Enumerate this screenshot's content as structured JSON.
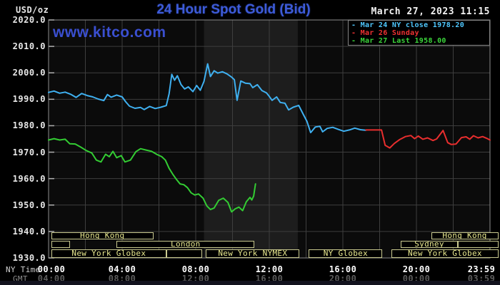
{
  "header": {
    "units_label": "USD/oz",
    "title": "24 Hour Spot Gold (Bid)",
    "datetime": "March 27, 2023 11:15",
    "watermark": "www.kitco.com"
  },
  "colors": {
    "title_blue": "#3d5bd8",
    "watermark_blue": "#3a4fd0",
    "grid": "#3e3e3e",
    "frame": "#8c8c8c",
    "plot_bg": "#0b0b0b",
    "band_bg": "#1d1d1d",
    "session_border": "#c9c98f",
    "session_text": "#e8e88f",
    "axis_text": "#e8e8e8",
    "ny_time_text": "#ffffff",
    "gmt_time_text": "#5c5c5c",
    "blue_line": "#3fb0f0",
    "red_line": "#e82e2e",
    "green_line": "#33cc33"
  },
  "legend": {
    "items": [
      {
        "label": "Mar 24 NY close 1978.20",
        "color": "#4fc8ff"
      },
      {
        "label": "Mar 26 Sunday",
        "color": "#f03232"
      },
      {
        "label": "Mar 27 Last 1958.00",
        "color": "#3bd63b"
      }
    ]
  },
  "axes": {
    "ny_label": "NY Time",
    "gmt_label": "GMT",
    "y_ticks": [
      "2020.0",
      "2010.0",
      "2000.0",
      "1990.0",
      "1980.0",
      "1970.0",
      "1960.0",
      "1950.0",
      "1940.0",
      "1930.0"
    ],
    "x_ny": [
      "00:00",
      "04:00",
      "08:00",
      "12:00",
      "16:00",
      "20:00",
      "23:59"
    ],
    "x_gmt": [
      "04:00",
      "08:00",
      "12:00",
      "16:00",
      "20:00",
      "00:00",
      "03:59"
    ]
  },
  "sessions": {
    "rows": [
      [
        {
          "label": "Hong Kong",
          "start": 0.15,
          "end": 5.7
        },
        {
          "label": "Hong Kong",
          "start": 20.8,
          "end": 24.45
        }
      ],
      [
        {
          "label": "",
          "start": 0.15,
          "end": 1.15
        },
        {
          "label": "London",
          "start": 3.7,
          "end": 11.2
        },
        {
          "label": "Sydney",
          "start": 19.15,
          "end": 22.25
        },
        {
          "label": "",
          "start": 22.25,
          "end": 24.45
        }
      ],
      [
        {
          "label": "New York Globex",
          "start": 0.15,
          "end": 6.4
        },
        {
          "label": "",
          "start": 6.4,
          "end": 8.35
        },
        {
          "label": "New York NYMEX",
          "start": 8.55,
          "end": 13.65
        },
        {
          "label": "NY Globex",
          "start": 14.15,
          "end": 18.15
        },
        {
          "label": "New York Globex",
          "start": 18.65,
          "end": 24.45
        }
      ]
    ]
  },
  "chart_data": {
    "type": "line",
    "title": "24 Hour Spot Gold (Bid)",
    "xlabel": "NY Time",
    "ylabel": "USD/oz",
    "x_range_hours": [
      0,
      24
    ],
    "ylim": [
      1930,
      2020
    ],
    "y_tick_step": 10,
    "x_tick_step_hours": 4,
    "grid": true,
    "legend_position": "top-right",
    "highlight_band_hours": [
      8.45,
      13.55
    ],
    "highlight_band_meaning": "New York NYMEX session",
    "series": [
      {
        "name": "Mar 24 NY close 1978.20",
        "color": "#3fb0f0",
        "points": [
          [
            0.0,
            1992.6
          ],
          [
            0.3,
            1993.1
          ],
          [
            0.6,
            1992.3
          ],
          [
            0.9,
            1992.7
          ],
          [
            1.2,
            1991.9
          ],
          [
            1.5,
            1990.7
          ],
          [
            1.8,
            1992.2
          ],
          [
            2.1,
            1991.4
          ],
          [
            2.4,
            1990.9
          ],
          [
            2.7,
            1990.1
          ],
          [
            3.0,
            1989.5
          ],
          [
            3.2,
            1991.8
          ],
          [
            3.4,
            1990.8
          ],
          [
            3.7,
            1991.6
          ],
          [
            4.0,
            1990.9
          ],
          [
            4.2,
            1989.0
          ],
          [
            4.4,
            1987.4
          ],
          [
            4.7,
            1986.6
          ],
          [
            5.0,
            1986.9
          ],
          [
            5.2,
            1986.1
          ],
          [
            5.5,
            1987.3
          ],
          [
            5.8,
            1986.5
          ],
          [
            6.1,
            1987.0
          ],
          [
            6.4,
            1987.6
          ],
          [
            6.55,
            1992.0
          ],
          [
            6.7,
            1999.4
          ],
          [
            6.85,
            1997.2
          ],
          [
            7.0,
            1998.9
          ],
          [
            7.2,
            1995.6
          ],
          [
            7.4,
            1993.9
          ],
          [
            7.6,
            1994.7
          ],
          [
            7.85,
            1992.9
          ],
          [
            8.05,
            1995.2
          ],
          [
            8.25,
            1993.4
          ],
          [
            8.45,
            1996.8
          ],
          [
            8.65,
            2003.4
          ],
          [
            8.8,
            1998.6
          ],
          [
            9.0,
            2000.8
          ],
          [
            9.2,
            1999.9
          ],
          [
            9.45,
            2000.4
          ],
          [
            9.7,
            1999.6
          ],
          [
            9.95,
            1998.4
          ],
          [
            10.1,
            1997.4
          ],
          [
            10.25,
            1989.6
          ],
          [
            10.45,
            1996.9
          ],
          [
            10.7,
            1996.1
          ],
          [
            10.95,
            1995.9
          ],
          [
            11.1,
            1994.4
          ],
          [
            11.35,
            1995.5
          ],
          [
            11.6,
            1993.3
          ],
          [
            11.85,
            1992.4
          ],
          [
            12.0,
            1991.1
          ],
          [
            12.15,
            1989.6
          ],
          [
            12.4,
            1990.9
          ],
          [
            12.6,
            1988.8
          ],
          [
            12.85,
            1988.5
          ],
          [
            13.05,
            1986.0
          ],
          [
            13.3,
            1987.0
          ],
          [
            13.6,
            1987.7
          ],
          [
            13.85,
            1984.3
          ],
          [
            14.05,
            1981.6
          ],
          [
            14.25,
            1977.4
          ],
          [
            14.5,
            1979.5
          ],
          [
            14.75,
            1979.8
          ],
          [
            14.9,
            1977.7
          ],
          [
            15.15,
            1979.0
          ],
          [
            15.45,
            1979.4
          ],
          [
            15.75,
            1978.6
          ],
          [
            16.05,
            1977.9
          ],
          [
            16.35,
            1978.4
          ],
          [
            16.65,
            1979.1
          ],
          [
            16.95,
            1978.5
          ],
          [
            17.25,
            1978.3
          ]
        ]
      },
      {
        "name": "Mar 26 Sunday",
        "color": "#e82e2e",
        "points": [
          [
            17.25,
            1978.4
          ],
          [
            18.1,
            1978.4
          ],
          [
            18.3,
            1972.6
          ],
          [
            18.55,
            1971.6
          ],
          [
            18.8,
            1973.3
          ],
          [
            19.1,
            1974.8
          ],
          [
            19.4,
            1975.9
          ],
          [
            19.7,
            1976.3
          ],
          [
            19.9,
            1975.1
          ],
          [
            20.1,
            1976.1
          ],
          [
            20.35,
            1974.9
          ],
          [
            20.6,
            1975.4
          ],
          [
            20.9,
            1974.4
          ],
          [
            21.1,
            1975.0
          ],
          [
            21.45,
            1978.2
          ],
          [
            21.7,
            1973.6
          ],
          [
            21.9,
            1972.9
          ],
          [
            22.15,
            1973.1
          ],
          [
            22.45,
            1975.5
          ],
          [
            22.7,
            1975.8
          ],
          [
            22.9,
            1974.9
          ],
          [
            23.1,
            1976.2
          ],
          [
            23.35,
            1975.4
          ],
          [
            23.6,
            1975.9
          ],
          [
            23.8,
            1975.3
          ],
          [
            24.0,
            1974.6
          ]
        ]
      },
      {
        "name": "Mar 27 Last 1958.00",
        "color": "#33cc33",
        "points": [
          [
            0.0,
            1974.6
          ],
          [
            0.3,
            1975.1
          ],
          [
            0.6,
            1974.6
          ],
          [
            0.9,
            1974.9
          ],
          [
            1.15,
            1973.2
          ],
          [
            1.45,
            1973.1
          ],
          [
            1.75,
            1971.9
          ],
          [
            2.05,
            1970.6
          ],
          [
            2.35,
            1969.7
          ],
          [
            2.6,
            1967.0
          ],
          [
            2.85,
            1966.3
          ],
          [
            3.1,
            1969.2
          ],
          [
            3.3,
            1968.3
          ],
          [
            3.5,
            1970.3
          ],
          [
            3.7,
            1967.9
          ],
          [
            3.95,
            1968.7
          ],
          [
            4.15,
            1966.3
          ],
          [
            4.45,
            1967.0
          ],
          [
            4.75,
            1970.2
          ],
          [
            5.0,
            1971.3
          ],
          [
            5.3,
            1970.8
          ],
          [
            5.6,
            1970.3
          ],
          [
            5.9,
            1969.1
          ],
          [
            6.15,
            1968.3
          ],
          [
            6.35,
            1967.0
          ],
          [
            6.55,
            1963.9
          ],
          [
            6.75,
            1961.7
          ],
          [
            6.95,
            1959.7
          ],
          [
            7.15,
            1958.0
          ],
          [
            7.35,
            1957.7
          ],
          [
            7.55,
            1956.6
          ],
          [
            7.75,
            1954.6
          ],
          [
            7.95,
            1953.8
          ],
          [
            8.15,
            1954.2
          ],
          [
            8.4,
            1952.6
          ],
          [
            8.6,
            1949.7
          ],
          [
            8.8,
            1948.3
          ],
          [
            9.0,
            1948.9
          ],
          [
            9.25,
            1951.8
          ],
          [
            9.5,
            1952.6
          ],
          [
            9.75,
            1951.0
          ],
          [
            9.95,
            1947.4
          ],
          [
            10.15,
            1948.6
          ],
          [
            10.35,
            1949.2
          ],
          [
            10.55,
            1947.9
          ],
          [
            10.75,
            1951.2
          ],
          [
            10.95,
            1952.9
          ],
          [
            11.05,
            1951.9
          ],
          [
            11.15,
            1953.4
          ],
          [
            11.25,
            1958.0
          ]
        ]
      }
    ]
  }
}
